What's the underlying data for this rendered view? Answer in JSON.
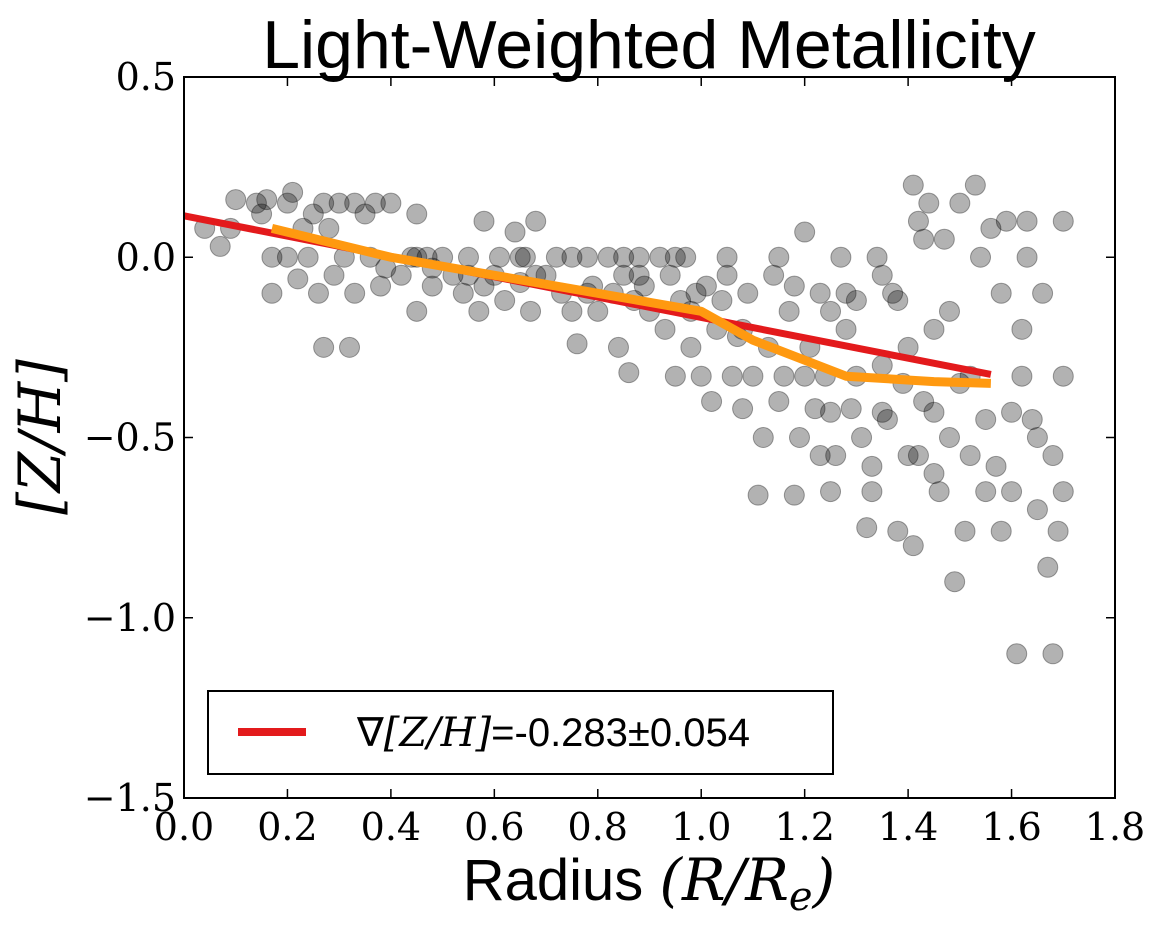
{
  "chart_data": {
    "type": "scatter",
    "title": "Light-Weighted Metallicity",
    "xlabel_text": "Radius ",
    "xlabel_math": "(R/R",
    "xlabel_sub": "e",
    "xlabel_close": ")",
    "ylabel": "[Z/H]",
    "xlim": [
      0.0,
      1.8
    ],
    "ylim": [
      -1.5,
      0.5
    ],
    "xticks": [
      0.0,
      0.2,
      0.4,
      0.6,
      0.8,
      1.0,
      1.2,
      1.4,
      1.6,
      1.8
    ],
    "xtick_labels": [
      "0.0",
      "0.2",
      "0.4",
      "0.6",
      "0.8",
      "1.0",
      "1.2",
      "1.4",
      "1.6",
      "1.8"
    ],
    "yticks": [
      0.5,
      0.0,
      -0.5,
      -1.0,
      -1.5
    ],
    "ytick_labels": [
      "0.5",
      "0.0",
      "−0.5",
      "−1.0",
      "−1.5"
    ],
    "grid": false,
    "legend_position": "lower-left",
    "legend": {
      "symbol": "∇",
      "math": "[Z/H]",
      "value": "=-0.283±0.054",
      "color": "#e31a1c"
    },
    "colors": {
      "points": "#000000",
      "fit_line": "#e31a1c",
      "median_line": "#ff9910"
    },
    "series": [
      {
        "name": "fit",
        "kind": "line",
        "x": [
          0.0,
          1.56
        ],
        "y": [
          0.115,
          -0.325
        ]
      },
      {
        "name": "binned median",
        "kind": "line",
        "x": [
          0.17,
          0.4,
          0.6,
          0.8,
          1.0,
          1.1,
          1.28,
          1.45,
          1.56
        ],
        "y": [
          0.08,
          0.0,
          -0.05,
          -0.1,
          -0.15,
          -0.23,
          -0.33,
          -0.345,
          -0.35
        ]
      },
      {
        "name": "spaxels",
        "kind": "scatter",
        "points": [
          [
            0.04,
            0.08
          ],
          [
            0.07,
            0.03
          ],
          [
            0.09,
            0.08
          ],
          [
            0.1,
            0.16
          ],
          [
            0.14,
            0.15
          ],
          [
            0.15,
            0.12
          ],
          [
            0.16,
            0.16
          ],
          [
            0.17,
            0.0
          ],
          [
            0.17,
            -0.1
          ],
          [
            0.2,
            0.15
          ],
          [
            0.2,
            0.0
          ],
          [
            0.21,
            0.18
          ],
          [
            0.22,
            -0.06
          ],
          [
            0.23,
            0.08
          ],
          [
            0.24,
            0.0
          ],
          [
            0.25,
            0.12
          ],
          [
            0.26,
            -0.1
          ],
          [
            0.27,
            0.15
          ],
          [
            0.27,
            -0.25
          ],
          [
            0.28,
            0.08
          ],
          [
            0.29,
            -0.05
          ],
          [
            0.3,
            0.15
          ],
          [
            0.31,
            0.0
          ],
          [
            0.32,
            -0.25
          ],
          [
            0.33,
            0.15
          ],
          [
            0.33,
            -0.1
          ],
          [
            0.35,
            0.12
          ],
          [
            0.36,
            0.0
          ],
          [
            0.37,
            0.15
          ],
          [
            0.38,
            -0.08
          ],
          [
            0.39,
            -0.03
          ],
          [
            0.4,
            0.15
          ],
          [
            0.42,
            -0.05
          ],
          [
            0.44,
            0.0
          ],
          [
            0.45,
            0.12
          ],
          [
            0.45,
            -0.15
          ],
          [
            0.47,
            0.0
          ],
          [
            0.48,
            -0.08
          ],
          [
            0.5,
            0.0
          ],
          [
            0.52,
            -0.05
          ],
          [
            0.54,
            -0.1
          ],
          [
            0.55,
            0.0
          ],
          [
            0.57,
            -0.15
          ],
          [
            0.58,
            0.1
          ],
          [
            0.6,
            -0.05
          ],
          [
            0.61,
            0.0
          ],
          [
            0.62,
            -0.12
          ],
          [
            0.64,
            0.07
          ],
          [
            0.65,
            -0.07
          ],
          [
            0.66,
            0.0
          ],
          [
            0.67,
            -0.15
          ],
          [
            0.68,
            0.1
          ],
          [
            0.7,
            -0.05
          ],
          [
            0.72,
            0.0
          ],
          [
            0.73,
            -0.1
          ],
          [
            0.75,
            -0.15
          ],
          [
            0.76,
            -0.24
          ],
          [
            0.78,
            0.0
          ],
          [
            0.79,
            -0.08
          ],
          [
            0.8,
            -0.15
          ],
          [
            0.82,
            0.0
          ],
          [
            0.83,
            -0.1
          ],
          [
            0.84,
            -0.25
          ],
          [
            0.85,
            0.0
          ],
          [
            0.86,
            -0.32
          ],
          [
            0.87,
            -0.12
          ],
          [
            0.88,
            0.0
          ],
          [
            0.89,
            -0.08
          ],
          [
            0.9,
            -0.15
          ],
          [
            0.92,
            0.0
          ],
          [
            0.93,
            -0.2
          ],
          [
            0.94,
            -0.05
          ],
          [
            0.95,
            -0.33
          ],
          [
            0.96,
            -0.12
          ],
          [
            0.97,
            0.0
          ],
          [
            0.98,
            -0.25
          ],
          [
            0.99,
            -0.1
          ],
          [
            1.0,
            -0.33
          ],
          [
            1.01,
            -0.08
          ],
          [
            1.02,
            -0.4
          ],
          [
            1.03,
            -0.2
          ],
          [
            1.04,
            -0.12
          ],
          [
            1.05,
            0.0
          ],
          [
            1.06,
            -0.33
          ],
          [
            1.07,
            -0.22
          ],
          [
            1.08,
            -0.42
          ],
          [
            1.09,
            -0.1
          ],
          [
            1.1,
            -0.33
          ],
          [
            1.11,
            -0.66
          ],
          [
            1.12,
            -0.5
          ],
          [
            1.13,
            -0.25
          ],
          [
            1.14,
            -0.05
          ],
          [
            1.15,
            -0.4
          ],
          [
            1.16,
            -0.33
          ],
          [
            1.17,
            -0.15
          ],
          [
            1.18,
            -0.66
          ],
          [
            1.19,
            -0.5
          ],
          [
            1.2,
            0.07
          ],
          [
            1.21,
            -0.25
          ],
          [
            1.22,
            -0.42
          ],
          [
            1.23,
            -0.1
          ],
          [
            1.24,
            -0.33
          ],
          [
            1.25,
            -0.65
          ],
          [
            1.26,
            -0.55
          ],
          [
            1.27,
            0.0
          ],
          [
            1.28,
            -0.2
          ],
          [
            1.29,
            -0.42
          ],
          [
            1.3,
            -0.33
          ],
          [
            1.31,
            -0.5
          ],
          [
            1.32,
            -0.75
          ],
          [
            1.33,
            -0.58
          ],
          [
            1.34,
            0.0
          ],
          [
            1.35,
            -0.3
          ],
          [
            1.36,
            -0.45
          ],
          [
            1.37,
            -0.1
          ],
          [
            1.38,
            -0.76
          ],
          [
            1.39,
            -0.35
          ],
          [
            1.4,
            -0.55
          ],
          [
            1.41,
            0.2
          ],
          [
            1.41,
            -0.8
          ],
          [
            1.42,
            0.1
          ],
          [
            1.43,
            -0.4
          ],
          [
            1.44,
            0.15
          ],
          [
            1.45,
            -0.2
          ],
          [
            1.46,
            -0.65
          ],
          [
            1.47,
            0.05
          ],
          [
            1.48,
            -0.5
          ],
          [
            1.49,
            -0.9
          ],
          [
            1.5,
            0.15
          ],
          [
            1.51,
            -0.76
          ],
          [
            1.52,
            -0.33
          ],
          [
            1.53,
            0.2
          ],
          [
            1.54,
            0.0
          ],
          [
            1.55,
            -0.45
          ],
          [
            1.56,
            0.08
          ],
          [
            1.57,
            -0.58
          ],
          [
            1.58,
            -0.76
          ],
          [
            1.59,
            0.1
          ],
          [
            1.6,
            -0.65
          ],
          [
            1.61,
            -1.1
          ],
          [
            1.62,
            -0.33
          ],
          [
            1.63,
            0.0
          ],
          [
            1.64,
            -0.45
          ],
          [
            1.65,
            -0.7
          ],
          [
            1.66,
            -0.1
          ],
          [
            1.67,
            -0.86
          ],
          [
            1.68,
            -0.55
          ],
          [
            1.68,
            -1.1
          ],
          [
            1.69,
            -0.76
          ],
          [
            1.7,
            0.1
          ],
          [
            1.7,
            -0.33
          ],
          [
            1.7,
            -0.65
          ],
          [
            1.35,
            -0.05
          ],
          [
            1.25,
            -0.15
          ],
          [
            1.15,
            0.0
          ],
          [
            1.05,
            -0.05
          ],
          [
            0.95,
            0.0
          ],
          [
            0.85,
            -0.05
          ],
          [
            0.75,
            0.0
          ],
          [
            0.65,
            0.0
          ],
          [
            0.55,
            -0.05
          ],
          [
            0.45,
            0.0
          ],
          [
            1.3,
            -0.12
          ],
          [
            1.4,
            -0.25
          ],
          [
            1.5,
            -0.35
          ],
          [
            1.6,
            -0.43
          ],
          [
            1.45,
            -0.43
          ],
          [
            1.35,
            -0.43
          ],
          [
            1.25,
            -0.43
          ],
          [
            1.2,
            -0.33
          ],
          [
            1.42,
            -0.55
          ],
          [
            1.52,
            -0.55
          ],
          [
            1.62,
            -0.2
          ],
          [
            1.58,
            -0.1
          ],
          [
            1.48,
            -0.15
          ],
          [
            1.38,
            -0.12
          ],
          [
            1.28,
            -0.1
          ],
          [
            1.18,
            -0.08
          ],
          [
            1.08,
            -0.2
          ],
          [
            0.98,
            -0.15
          ],
          [
            0.88,
            -0.05
          ],
          [
            0.78,
            -0.1
          ],
          [
            0.68,
            -0.05
          ],
          [
            0.58,
            -0.08
          ],
          [
            0.48,
            -0.03
          ],
          [
            1.65,
            -0.5
          ],
          [
            1.55,
            -0.65
          ],
          [
            1.45,
            -0.6
          ],
          [
            1.33,
            -0.65
          ],
          [
            1.23,
            -0.55
          ],
          [
            1.63,
            0.1
          ],
          [
            1.43,
            0.05
          ]
        ]
      }
    ]
  }
}
